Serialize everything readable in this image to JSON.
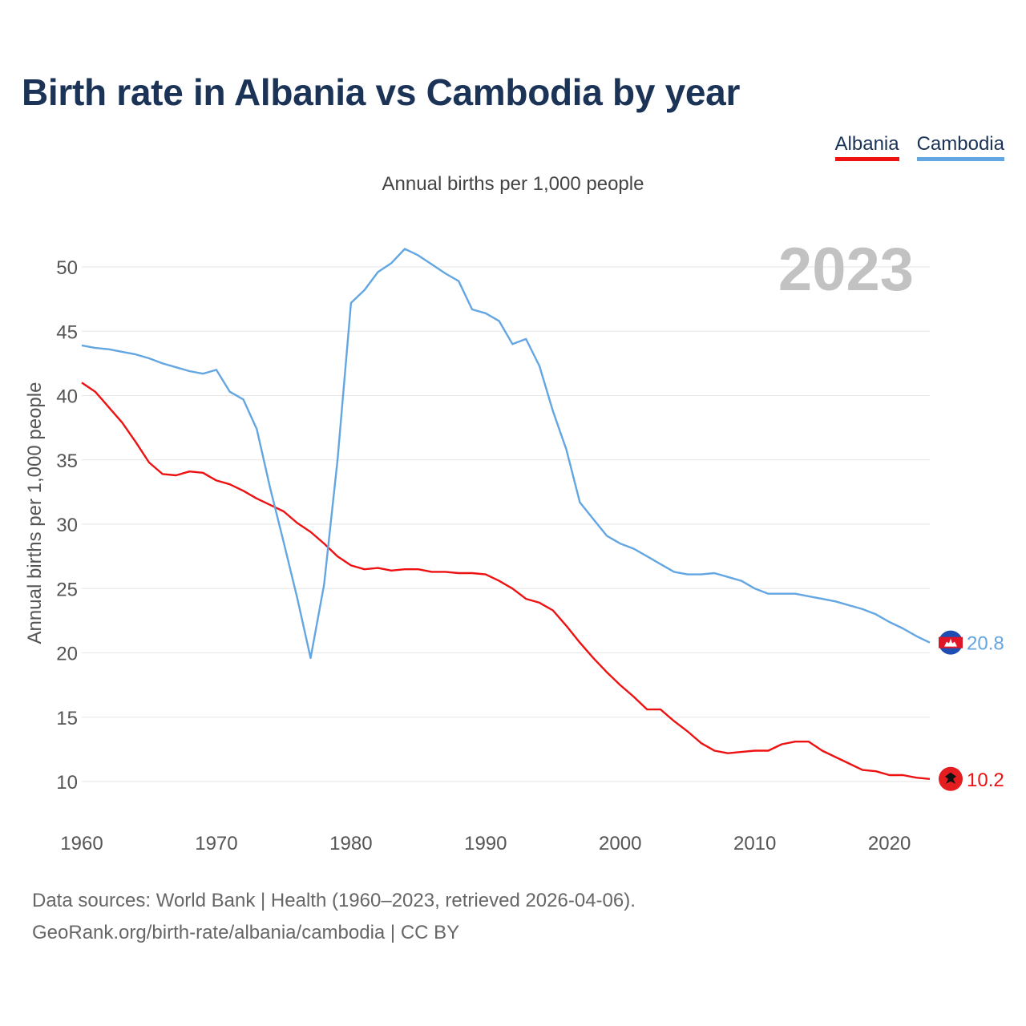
{
  "chart_data": {
    "type": "line",
    "title": "Birth rate in Albania vs Cambodia by year",
    "subtitle": "Annual births per 1,000 people",
    "ylabel": "Annual births per 1,000 people",
    "xlabel": "",
    "year_label": "2023",
    "x": [
      1960,
      1961,
      1962,
      1963,
      1964,
      1965,
      1966,
      1967,
      1968,
      1969,
      1970,
      1971,
      1972,
      1973,
      1974,
      1975,
      1976,
      1977,
      1978,
      1979,
      1980,
      1981,
      1982,
      1983,
      1984,
      1985,
      1986,
      1987,
      1988,
      1989,
      1990,
      1991,
      1992,
      1993,
      1994,
      1995,
      1996,
      1997,
      1998,
      1999,
      2000,
      2001,
      2002,
      2003,
      2004,
      2005,
      2006,
      2007,
      2008,
      2009,
      2010,
      2011,
      2012,
      2013,
      2014,
      2015,
      2016,
      2017,
      2018,
      2019,
      2020,
      2021,
      2022,
      2023
    ],
    "xlim": [
      1960,
      2023
    ],
    "ylim": [
      7.5,
      53
    ],
    "xticks": [
      1960,
      1970,
      1980,
      1990,
      2000,
      2010,
      2020
    ],
    "yticks": [
      10,
      15,
      20,
      25,
      30,
      35,
      40,
      45,
      50
    ],
    "series": [
      {
        "name": "Albania",
        "color": "#ee1111",
        "end_label": "10.2",
        "flag": "albania-flag-icon",
        "values": [
          41.0,
          40.3,
          39.1,
          37.9,
          36.4,
          34.8,
          33.9,
          33.8,
          34.1,
          34.0,
          33.4,
          33.1,
          32.6,
          32.0,
          31.5,
          31.0,
          30.1,
          29.4,
          28.5,
          27.5,
          26.8,
          26.5,
          26.6,
          26.4,
          26.5,
          26.5,
          26.3,
          26.3,
          26.2,
          26.2,
          26.1,
          25.6,
          25.0,
          24.2,
          23.9,
          23.3,
          22.1,
          20.8,
          19.6,
          18.5,
          17.5,
          16.6,
          15.6,
          15.6,
          14.7,
          13.9,
          13.0,
          12.4,
          12.2,
          12.3,
          12.4,
          12.4,
          12.9,
          13.1,
          13.1,
          12.4,
          11.9,
          11.4,
          10.9,
          10.8,
          10.5,
          10.5,
          10.3,
          10.2
        ]
      },
      {
        "name": "Cambodia",
        "color": "#63a6e2",
        "end_label": "20.8",
        "flag": "cambodia-flag-icon",
        "values": [
          43.9,
          43.7,
          43.6,
          43.4,
          43.2,
          42.9,
          42.5,
          42.2,
          41.9,
          41.7,
          42.0,
          40.3,
          39.7,
          37.4,
          32.8,
          28.6,
          24.3,
          19.6,
          25.3,
          35.0,
          47.2,
          48.2,
          49.6,
          50.3,
          51.4,
          50.9,
          50.2,
          49.5,
          48.9,
          46.7,
          46.4,
          45.8,
          44.0,
          44.4,
          42.3,
          38.8,
          35.8,
          31.7,
          30.4,
          29.1,
          28.5,
          28.1,
          27.5,
          26.9,
          26.3,
          26.1,
          26.1,
          26.2,
          25.9,
          25.6,
          25.0,
          24.6,
          24.6,
          24.6,
          24.4,
          24.2,
          24.0,
          23.7,
          23.4,
          23.0,
          22.4,
          21.9,
          21.3,
          20.8
        ]
      }
    ]
  },
  "footer": {
    "line1": "Data sources: World Bank | Health (1960–2023, retrieved 2026-04-06).",
    "line2": "GeoRank.org/birth-rate/albania/cambodia | CC BY"
  }
}
